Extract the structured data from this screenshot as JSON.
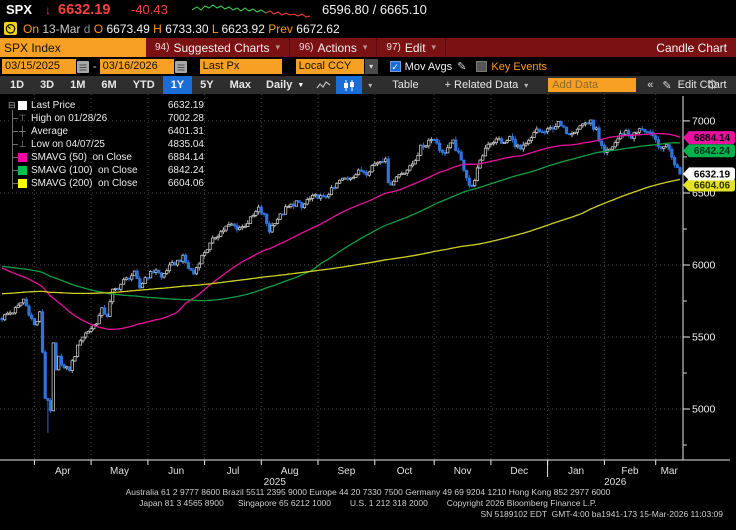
{
  "header": {
    "ticker": "SPX",
    "direction_arrow": "↓",
    "last_price": "6632.19",
    "change": "-40.43",
    "bid_ask": "6596.80 / 6665.10",
    "session": {
      "on_label": "On",
      "date": "13-Mar",
      "freq": "d",
      "o_label": "O",
      "open": "6673.49",
      "h_label": "H",
      "high": "6733.30",
      "l_label": "L",
      "low": "6623.92",
      "prev_label": "Prev",
      "prev": "6672.62"
    }
  },
  "menubar": {
    "ticker_field": "SPX Index",
    "items": [
      {
        "num": "94)",
        "label": "Suggested Charts",
        "caret": "▾"
      },
      {
        "num": "96)",
        "label": "Actions",
        "caret": "▾"
      },
      {
        "num": "97)",
        "label": "Edit",
        "caret": "▾"
      }
    ],
    "right_label": "Candle Chart"
  },
  "controls": {
    "date_from": "03/15/2025",
    "dash": "-",
    "date_to": "03/16/2026",
    "price_field": "Last Px",
    "currency": "Local CCY",
    "ccy_caret": "▾",
    "mov_avgs_label": "Mov Avgs",
    "mov_avgs_checked": true,
    "check_glyph": "✓",
    "pencil": "✎",
    "key_events_label": "Key Events",
    "key_events_checked": false
  },
  "toolbar": {
    "ranges": [
      "1D",
      "3D",
      "1M",
      "6M",
      "YTD",
      "1Y",
      "5Y",
      "Max"
    ],
    "active_range": "1Y",
    "period": "Daily",
    "period_caret": "▼",
    "table_label": "Table",
    "related_label": "+ Related Data",
    "related_caret": "▾",
    "add_data_placeholder": "Add Data",
    "collapse": "«",
    "edit_pencil": "✎",
    "edit_chart_label": "Edit Chart",
    "gear": "⚙",
    "type_caret": "▾"
  },
  "legend": {
    "expander": "⊟",
    "items": [
      {
        "swatch": "#ffffff",
        "glyph": null,
        "label": "Last Price",
        "value": "6632.19"
      },
      {
        "swatch": null,
        "glyph": "⊤",
        "label": "High on 01/28/26",
        "value": "7002.28"
      },
      {
        "swatch": null,
        "glyph": "┼",
        "label": "Average",
        "value": "6401.31"
      },
      {
        "swatch": null,
        "glyph": "⊥",
        "label": "Low on 04/07/25",
        "value": "4835.04"
      },
      {
        "swatch": "#ff00aa",
        "glyph": null,
        "label": "SMAVG (50)  on Close",
        "value": "6884.14"
      },
      {
        "swatch": "#00c050",
        "glyph": null,
        "label": "SMAVG (100)  on Close",
        "value": "6842.24"
      },
      {
        "swatch": "#ffff00",
        "glyph": null,
        "label": "SMAVG (200)  on Close",
        "value": "6604.06"
      }
    ]
  },
  "chart_data": {
    "type": "candlestick",
    "symbol": "SPX Index",
    "period": "daily",
    "date_range": "03/15/2025 - 03/16/2026",
    "y_domain": [
      4646,
      7187
    ],
    "y_ticks": [
      7000,
      6500,
      6000,
      5500,
      5000
    ],
    "y_minor": [
      6750,
      6250,
      5750,
      5250,
      4750
    ],
    "month_labels": [
      "Apr",
      "May",
      "Jun",
      "Jul",
      "Aug",
      "Sep",
      "Oct",
      "Nov",
      "Dec",
      "Jan",
      "Feb",
      "Mar"
    ],
    "month_ticks": [
      12,
      33,
      54,
      75,
      96,
      117,
      138,
      160,
      181,
      202,
      223,
      242
    ],
    "years": [
      {
        "label": "2025",
        "span": [
          0,
          202
        ]
      },
      {
        "label": "2026",
        "span": [
          202,
          252
        ]
      }
    ],
    "year_divider_day": 202,
    "last_close": 6632.19,
    "high": {
      "day": 218,
      "value": 7002.28,
      "date": "01/28/26"
    },
    "low": {
      "day": 17,
      "value": 4835.04,
      "date": "04/07/25"
    },
    "average": 6401.31,
    "candle_up_color": "#c6c6c6",
    "candle_down_color": "#2e74dd",
    "grid_color": "#4a4a4a",
    "axis_color": "#e8e8e8",
    "smavg": [
      {
        "window": 50,
        "color": "#e8109e",
        "end_value": 6884.14
      },
      {
        "window": 100,
        "color": "#0f9e44",
        "end_value": 6842.24
      },
      {
        "window": 200,
        "color": "#cfcf24",
        "end_value": 6604.06
      }
    ],
    "tags": [
      {
        "text": "6884.14",
        "price": 6884.14,
        "bg": "#e8109e",
        "fg": "#000000",
        "dy": 0,
        "z": 2
      },
      {
        "text": "6842.24",
        "price": 6842.24,
        "bg": "#00b14c",
        "fg": "#00331a",
        "dy": 7,
        "z": 1
      },
      {
        "text": "6632.19",
        "price": 6632.19,
        "bg": "#ffffff",
        "fg": "#000000",
        "dy": 0,
        "z": 2
      },
      {
        "text": "6604.06",
        "price": 6604.06,
        "bg": "#e3e32a",
        "fg": "#333300",
        "dy": 7,
        "z": 1
      }
    ],
    "prehistory": [
      [
        -200,
        5420
      ],
      [
        -170,
        5500
      ],
      [
        -140,
        5620
      ],
      [
        -110,
        5820
      ],
      [
        -85,
        5990
      ],
      [
        -60,
        6040
      ],
      [
        -45,
        6085
      ],
      [
        -35,
        6120
      ],
      [
        -28,
        6105
      ],
      [
        -20,
        6015
      ],
      [
        -14,
        5925
      ],
      [
        -9,
        5815
      ],
      [
        -5,
        5705
      ],
      [
        -2,
        5655
      ],
      [
        -1,
        5638
      ]
    ],
    "anchors": [
      [
        0,
        5630
      ],
      [
        2,
        5662
      ],
      [
        4,
        5675
      ],
      [
        6,
        5712
      ],
      [
        8,
        5762
      ],
      [
        10,
        5668
      ],
      [
        12,
        5581
      ],
      [
        13,
        5612
      ],
      [
        14,
        5671
      ],
      [
        15,
        5396
      ],
      [
        16,
        5074
      ],
      [
        17,
        5062
      ],
      [
        18,
        4983
      ],
      [
        19,
        5457
      ],
      [
        20,
        5268
      ],
      [
        21,
        5363
      ],
      [
        23,
        5283
      ],
      [
        25,
        5276
      ],
      [
        27,
        5376
      ],
      [
        29,
        5484
      ],
      [
        31,
        5525
      ],
      [
        33,
        5561
      ],
      [
        35,
        5604
      ],
      [
        37,
        5687
      ],
      [
        39,
        5650
      ],
      [
        41,
        5820
      ],
      [
        43,
        5845
      ],
      [
        45,
        5887
      ],
      [
        47,
        5916
      ],
      [
        49,
        5940
      ],
      [
        51,
        5842
      ],
      [
        53,
        5912
      ],
      [
        55,
        5940
      ],
      [
        57,
        5970
      ],
      [
        59,
        5912
      ],
      [
        61,
        5968
      ],
      [
        63,
        6000
      ],
      [
        65,
        6025
      ],
      [
        67,
        6050
      ],
      [
        69,
        5980
      ],
      [
        71,
        5940
      ],
      [
        73,
        6025
      ],
      [
        75,
        6092
      ],
      [
        77,
        6141
      ],
      [
        79,
        6198
      ],
      [
        81,
        6230
      ],
      [
        83,
        6263
      ],
      [
        85,
        6280
      ],
      [
        87,
        6259
      ],
      [
        89,
        6263
      ],
      [
        91,
        6297
      ],
      [
        93,
        6339
      ],
      [
        95,
        6389
      ],
      [
        97,
        6340
      ],
      [
        99,
        6238
      ],
      [
        101,
        6305
      ],
      [
        103,
        6340
      ],
      [
        105,
        6389
      ],
      [
        107,
        6411
      ],
      [
        109,
        6439
      ],
      [
        111,
        6395
      ],
      [
        113,
        6449
      ],
      [
        115,
        6466
      ],
      [
        117,
        6481
      ],
      [
        119,
        6460
      ],
      [
        121,
        6502
      ],
      [
        123,
        6532
      ],
      [
        125,
        6584
      ],
      [
        127,
        6600
      ],
      [
        129,
        6615
      ],
      [
        131,
        6631
      ],
      [
        133,
        6656
      ],
      [
        135,
        6643
      ],
      [
        137,
        6688
      ],
      [
        139,
        6715
      ],
      [
        141,
        6735
      ],
      [
        142,
        6753
      ],
      [
        143,
        6552
      ],
      [
        145,
        6592
      ],
      [
        147,
        6629
      ],
      [
        149,
        6654
      ],
      [
        151,
        6672
      ],
      [
        153,
        6735
      ],
      [
        155,
        6812
      ],
      [
        157,
        6840
      ],
      [
        159,
        6890
      ],
      [
        161,
        6851
      ],
      [
        163,
        6770
      ],
      [
        165,
        6812
      ],
      [
        167,
        6850
      ],
      [
        169,
        6765
      ],
      [
        171,
        6672
      ],
      [
        172,
        6617
      ],
      [
        173,
        6556
      ],
      [
        174,
        6538
      ],
      [
        175,
        6602
      ],
      [
        176,
        6660
      ],
      [
        177,
        6710
      ],
      [
        178,
        6765
      ],
      [
        179,
        6812
      ],
      [
        180,
        6849
      ],
      [
        182,
        6860
      ],
      [
        184,
        6870
      ],
      [
        186,
        6840
      ],
      [
        188,
        6886
      ],
      [
        190,
        6840
      ],
      [
        192,
        6800
      ],
      [
        194,
        6829
      ],
      [
        196,
        6875
      ],
      [
        198,
        6940
      ],
      [
        200,
        6920
      ],
      [
        202,
        6929
      ],
      [
        204,
        6960
      ],
      [
        206,
        6980
      ],
      [
        208,
        6940
      ],
      [
        210,
        6920
      ],
      [
        212,
        6940
      ],
      [
        214,
        6965
      ],
      [
        216,
        6990
      ],
      [
        218,
        6988
      ],
      [
        219,
        6958
      ],
      [
        220,
        6938
      ],
      [
        221,
        6850
      ],
      [
        223,
        6770
      ],
      [
        225,
        6800
      ],
      [
        227,
        6850
      ],
      [
        229,
        6902
      ],
      [
        231,
        6930
      ],
      [
        233,
        6890
      ],
      [
        235,
        6920
      ],
      [
        237,
        6950
      ],
      [
        239,
        6920
      ],
      [
        241,
        6880
      ],
      [
        243,
        6840
      ],
      [
        244,
        6790
      ],
      [
        245,
        6820
      ],
      [
        246,
        6840
      ],
      [
        247,
        6800
      ],
      [
        248,
        6750
      ],
      [
        249,
        6700
      ],
      [
        250,
        6680
      ],
      [
        251,
        6632.19
      ]
    ]
  },
  "sparkline": {
    "green_color": "#3fd455",
    "red_color": "#f7433a",
    "green": [
      [
        0,
        8
      ],
      [
        5,
        5
      ],
      [
        9,
        8
      ],
      [
        13,
        4
      ],
      [
        17,
        6
      ],
      [
        21,
        3
      ],
      [
        25,
        6
      ],
      [
        29,
        4
      ],
      [
        33,
        7
      ],
      [
        37,
        5
      ],
      [
        41,
        8
      ],
      [
        45,
        6
      ],
      [
        49,
        9
      ],
      [
        53,
        6
      ],
      [
        57,
        9
      ],
      [
        61,
        7
      ],
      [
        65,
        10
      ],
      [
        69,
        8
      ],
      [
        74,
        11
      ]
    ],
    "red": [
      [
        74,
        11
      ],
      [
        78,
        9
      ],
      [
        82,
        12
      ],
      [
        86,
        10
      ],
      [
        90,
        13
      ],
      [
        94,
        11
      ],
      [
        98,
        13
      ],
      [
        102,
        12
      ],
      [
        106,
        14
      ],
      [
        110,
        12
      ],
      [
        114,
        15
      ],
      [
        118,
        14
      ]
    ]
  },
  "footer": {
    "line1": "Australia 61 2 9777 8600 Brazil 5511 2395 9000 Europe 44 20 7330 7500 Germany 49 69 9204 1210 Hong Kong 852 2977 6000",
    "line2": "Japan 81 3 4565 8900      Singapore 65 6212 1000        U.S. 1 212 318 2000        Copyright 2026 Bloomberg Finance L.P.",
    "line3": "SN 5189102 EDT  GMT-4:00 ba1941-173 15-Mar-2026 11:03:09"
  }
}
